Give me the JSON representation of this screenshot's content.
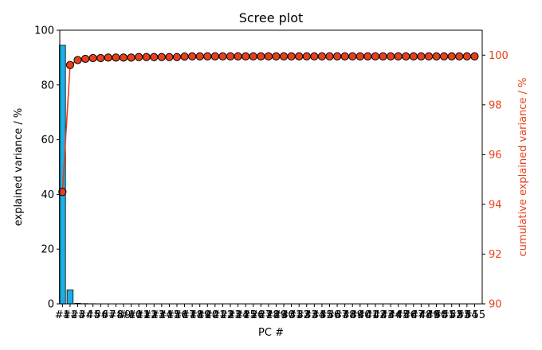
{
  "chart_data": {
    "type": "bar",
    "title": "Scree plot",
    "xlabel": "PC #",
    "ylabel": "explained variance / %",
    "ylabel_right": "cumulative explained variance / %",
    "ylim": [
      0,
      100
    ],
    "ylim_right": [
      90,
      101
    ],
    "yticks": [
      "0",
      "20",
      "40",
      "60",
      "80",
      "100"
    ],
    "yticks_right": [
      "90",
      "92",
      "94",
      "96",
      "98",
      "100"
    ],
    "categories": [
      "#1",
      "#2",
      "#3",
      "#4",
      "#5",
      "#6",
      "#7",
      "#8",
      "#9",
      "#10",
      "#11",
      "#12",
      "#13",
      "#14",
      "#15",
      "#16",
      "#17",
      "#18",
      "#19",
      "#20",
      "#21",
      "#22",
      "#23",
      "#24",
      "#25",
      "#26",
      "#27",
      "#28",
      "#29",
      "#30",
      "#31",
      "#32",
      "#33",
      "#34",
      "#35",
      "#36",
      "#37",
      "#38",
      "#39",
      "#40",
      "#41",
      "#42",
      "#43",
      "#44",
      "#45",
      "#46",
      "#47",
      "#48",
      "#49",
      "#50",
      "#51",
      "#52",
      "#53",
      "#54",
      "#55"
    ],
    "series": [
      {
        "kind": "bar",
        "color": "#1aafe6",
        "values": [
          94.5,
          5.1,
          0.2,
          0.08,
          0.05,
          0.03,
          0.02,
          0.01,
          0.01,
          0.01,
          0.01,
          0.01,
          0.01,
          0.01,
          0.01,
          0.01,
          0.01,
          0.005,
          0.005,
          0.005,
          0.005,
          0.005,
          0.005,
          0.005,
          0.005,
          0.005,
          0.005,
          0.005,
          0.005,
          0.005,
          0.005,
          0.005,
          0.005,
          0.005,
          0.005,
          0.005,
          0.005,
          0.005,
          0.005,
          0.005,
          0.005,
          0.005,
          0.005,
          0.005,
          0.005,
          0.005,
          0.005,
          0.005,
          0.005,
          0.005,
          0.005,
          0.005,
          0.005,
          0.005,
          0.005
        ]
      },
      {
        "kind": "line",
        "axis": "right",
        "color": "#e8401c",
        "values": [
          94.5,
          99.6,
          99.8,
          99.85,
          99.88,
          99.88,
          99.9,
          99.9,
          99.9,
          99.9,
          99.92,
          99.92,
          99.92,
          99.92,
          99.92,
          99.92,
          99.94,
          99.95,
          99.95,
          99.95,
          99.95,
          99.95,
          99.95,
          99.95,
          99.95,
          99.95,
          99.95,
          99.95,
          99.95,
          99.95,
          99.95,
          99.95,
          99.95,
          99.95,
          99.95,
          99.95,
          99.95,
          99.95,
          99.95,
          99.95,
          99.95,
          99.95,
          99.95,
          99.95,
          99.95,
          99.95,
          99.95,
          99.95,
          99.95,
          99.95,
          99.95,
          99.95,
          99.95,
          99.95,
          99.95
        ]
      }
    ],
    "grid": false,
    "legend": "none"
  }
}
